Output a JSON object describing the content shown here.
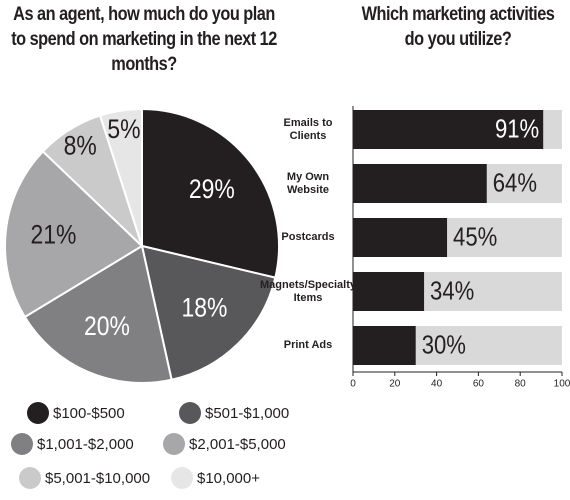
{
  "chart_data": [
    {
      "type": "pie",
      "title": "As an agent, how much do you plan to spend on marketing in the next 12 months?",
      "categories": [
        "$100-$500",
        "$501-$1,000",
        "$1,001-$2,000",
        "$2,001-$5,000",
        "$5,001-$10,000",
        "$10,000+"
      ],
      "values": [
        29,
        18,
        20,
        21,
        8,
        5
      ],
      "value_labels": [
        "29%",
        "18%",
        "20%",
        "21%",
        "8%",
        "5%"
      ],
      "colors": [
        "#231f20",
        "#58585a",
        "#808082",
        "#a7a7a9",
        "#cacaca",
        "#e6e6e6"
      ]
    },
    {
      "type": "hbar",
      "title": "Which marketing activities do you utilize?",
      "categories": [
        "Emails to Clients",
        "My Own Website",
        "Postcards",
        "Magnets/Specialty Items",
        "Print Ads"
      ],
      "values": [
        91,
        64,
        45,
        34,
        30
      ],
      "value_labels": [
        "91%",
        "64%",
        "45%",
        "34%",
        "30%"
      ],
      "color": "#231f20",
      "track_color": "#d9d9d9",
      "xlim": [
        0,
        100
      ],
      "xticks": [
        0,
        20,
        40,
        60,
        80,
        100
      ]
    }
  ]
}
